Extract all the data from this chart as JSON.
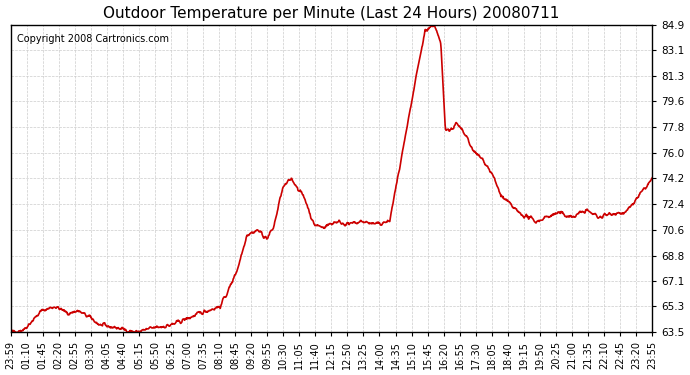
{
  "title": "Outdoor Temperature per Minute (Last 24 Hours) 20080711",
  "copyright": "Copyright 2008 Cartronics.com",
  "line_color": "#cc0000",
  "bg_color": "#ffffff",
  "grid_color": "#cccccc",
  "yticks": [
    63.5,
    65.3,
    67.1,
    68.8,
    70.6,
    72.4,
    74.2,
    76.0,
    77.8,
    79.6,
    81.3,
    83.1,
    84.9
  ],
  "ymin": 63.5,
  "ymax": 84.9,
  "xtick_labels": [
    "23:59",
    "01:10",
    "01:45",
    "02:20",
    "02:55",
    "03:30",
    "04:05",
    "04:40",
    "05:15",
    "05:50",
    "06:25",
    "07:00",
    "07:35",
    "08:10",
    "08:45",
    "09:20",
    "09:55",
    "10:30",
    "11:05",
    "11:40",
    "12:15",
    "12:50",
    "13:25",
    "14:00",
    "14:35",
    "15:10",
    "15:45",
    "16:20",
    "16:55",
    "17:30",
    "18:05",
    "18:40",
    "19:15",
    "19:50",
    "20:25",
    "21:00",
    "21:35",
    "22:10",
    "22:45",
    "23:20",
    "23:55"
  ],
  "line_width": 1.2
}
